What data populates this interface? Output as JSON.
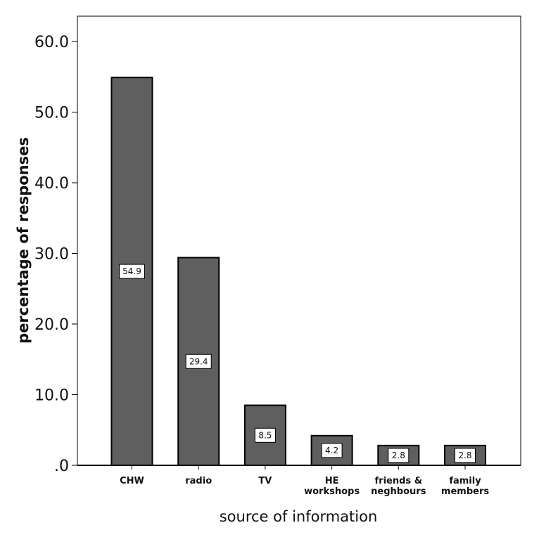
{
  "chart_data": {
    "type": "bar",
    "title": "",
    "xlabel": "source of information",
    "ylabel": "percentage of responses",
    "categories": [
      [
        "CHW"
      ],
      [
        "radio"
      ],
      [
        "TV"
      ],
      [
        "HE",
        "workshops"
      ],
      [
        "friends &",
        "neghbours"
      ],
      [
        "family",
        "members"
      ]
    ],
    "values": [
      54.9,
      29.4,
      8.5,
      4.2,
      2.8,
      2.8
    ],
    "data_labels": [
      "54.9",
      "29.4",
      "8.5",
      "4.2",
      "2.8",
      "2.8"
    ],
    "ylim": [
      0,
      63
    ],
    "yticks": [
      0,
      10,
      20,
      30,
      40,
      50,
      60
    ],
    "ytick_labels": [
      ".0",
      "10.0",
      "20.0",
      "30.0",
      "40.0",
      "50.0",
      "60.0"
    ],
    "grid": false,
    "legend": "none",
    "colors": {
      "bar_fill": "#5f5f5f",
      "bar_stroke": "#000000",
      "label_box": "#ffffff"
    }
  }
}
